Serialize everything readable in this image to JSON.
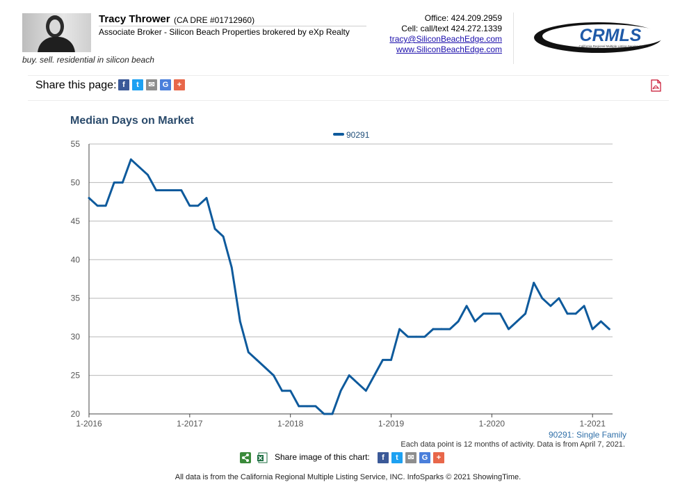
{
  "agent": {
    "name": "Tracy Thrower",
    "dre": "(CA DRE #01712960)",
    "title": "Associate Broker - Silicon Beach Properties brokered by eXp Realty",
    "tagline": "buy. sell. residential in silicon beach"
  },
  "contact": {
    "office": "Office: 424.209.2959",
    "cell": "Cell: call/text 424.272.1339",
    "email": "tracy@SiliconBeachEdge.com",
    "website": "www.SiliconBeachEdge.com"
  },
  "logo": {
    "text": "CRMLS",
    "subtext": "California Regional Multiple Listing Service, Inc."
  },
  "share_bar": {
    "label": "Share this page:",
    "icons": [
      {
        "name": "facebook-icon",
        "glyph": "f",
        "color": "#3b5998"
      },
      {
        "name": "twitter-icon",
        "glyph": "t",
        "color": "#1da1f2"
      },
      {
        "name": "email-icon",
        "glyph": "✉",
        "color": "#8e8e8e"
      },
      {
        "name": "google-icon",
        "glyph": "G",
        "color": "#4a7fdb"
      },
      {
        "name": "more-icon",
        "glyph": "+",
        "color": "#e8674a"
      }
    ]
  },
  "chart_data": {
    "type": "line",
    "title": "Median Days on Market",
    "xlabel": "",
    "ylabel": "",
    "ylim": [
      20,
      55
    ],
    "yticks": [
      20,
      25,
      30,
      35,
      40,
      45,
      50,
      55
    ],
    "xticks": [
      {
        "label": "1-2016",
        "index": 0
      },
      {
        "label": "1-2017",
        "index": 12
      },
      {
        "label": "1-2018",
        "index": 24
      },
      {
        "label": "1-2019",
        "index": 36
      },
      {
        "label": "1-2020",
        "index": 48
      },
      {
        "label": "1-2021",
        "index": 60
      }
    ],
    "grid": true,
    "legend": "top-center",
    "series": [
      {
        "name": "90291",
        "color": "#0e5a9c",
        "values": [
          48,
          47,
          47,
          50,
          50,
          53,
          52,
          51,
          49,
          49,
          49,
          49,
          47,
          47,
          48,
          44,
          43,
          39,
          32,
          28,
          27,
          26,
          25,
          23,
          23,
          21,
          21,
          21,
          20,
          20,
          23,
          25,
          24,
          23,
          25,
          27,
          27,
          31,
          30,
          30,
          30,
          31,
          31,
          31,
          32,
          34,
          32,
          33,
          33,
          33,
          31,
          32,
          33,
          37,
          35,
          34,
          35,
          33,
          33,
          34,
          31,
          32,
          31
        ]
      }
    ]
  },
  "chart_notes": {
    "series_note": "90291: Single Family",
    "activity_note": "Each data point is 12 months of activity. Data is from April 7, 2021."
  },
  "share_image": {
    "label": "Share image of this chart:"
  },
  "footer": {
    "text": "All data is from the California Regional Multiple Listing Service, INC. InfoSparks © 2021 ShowingTime."
  }
}
